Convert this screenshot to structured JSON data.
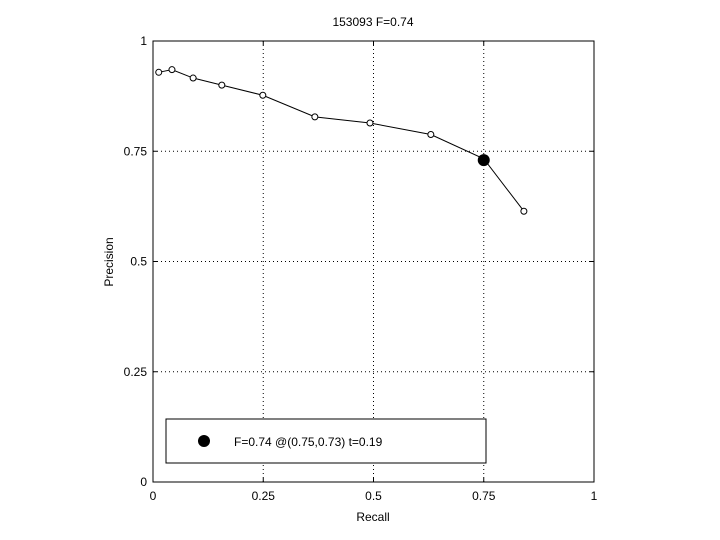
{
  "chart_data": {
    "type": "line",
    "title": "153093 F=0.74",
    "xlabel": "Recall",
    "ylabel": "Precision",
    "xlim": [
      0,
      1
    ],
    "ylim": [
      0,
      1
    ],
    "xticks": [
      0,
      0.25,
      0.5,
      0.75,
      1
    ],
    "yticks": [
      0,
      0.25,
      0.5,
      0.75,
      1
    ],
    "xtick_labels": [
      "0",
      "0.25",
      "0.5",
      "0.75",
      "1"
    ],
    "ytick_labels": [
      "0",
      "0.25",
      "0.5",
      "0.75",
      "1"
    ],
    "grid": true,
    "legend_position": "bottom-left",
    "series": [
      {
        "marker": "open-circle",
        "points": [
          {
            "x": 0.013,
            "y": 0.929
          },
          {
            "x": 0.043,
            "y": 0.935
          },
          {
            "x": 0.091,
            "y": 0.916
          },
          {
            "x": 0.156,
            "y": 0.9
          },
          {
            "x": 0.249,
            "y": 0.877
          },
          {
            "x": 0.367,
            "y": 0.828
          },
          {
            "x": 0.492,
            "y": 0.814
          },
          {
            "x": 0.63,
            "y": 0.788
          },
          {
            "x": 0.75,
            "y": 0.733
          },
          {
            "x": 0.841,
            "y": 0.614
          }
        ]
      }
    ],
    "highlight": {
      "name": "F=0.74 @(0.75,0.73) t=0.19",
      "x": 0.75,
      "y": 0.73
    },
    "colors": {
      "line": "#000000",
      "grid": "#000000"
    }
  }
}
